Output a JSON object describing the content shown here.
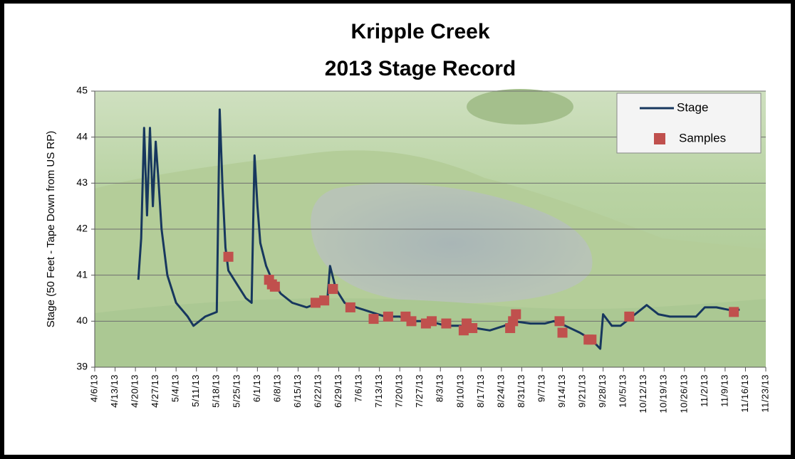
{
  "chart_data": {
    "type": "line",
    "title": "Kripple Creek",
    "subtitle": "2013 Stage Record",
    "y_label": "Stage (50 Feet - Tape Down from US RP)",
    "ylim": [
      39,
      45
    ],
    "yticks": [
      39,
      40,
      41,
      42,
      43,
      44,
      45
    ],
    "xlim": [
      "4/6/13",
      "11/23/13"
    ],
    "xticks": [
      "4/6/13",
      "4/13/13",
      "4/20/13",
      "4/27/13",
      "5/4/13",
      "5/11/13",
      "5/18/13",
      "5/25/13",
      "6/1/13",
      "6/8/13",
      "6/15/13",
      "6/22/13",
      "6/29/13",
      "7/6/13",
      "7/13/13",
      "7/20/13",
      "7/27/13",
      "8/3/13",
      "8/10/13",
      "8/17/13",
      "8/24/13",
      "8/31/13",
      "9/7/13",
      "9/14/13",
      "9/21/13",
      "9/28/13",
      "10/5/13",
      "10/12/13",
      "10/19/13",
      "10/26/13",
      "11/2/13",
      "11/9/13",
      "11/16/13",
      "11/23/13"
    ],
    "grid": true,
    "legend": "upper right",
    "series": [
      {
        "name": "Stage",
        "color": "#17375e",
        "kind": "line",
        "x": [
          "4/21/13",
          "4/22/13",
          "4/23/13",
          "4/24/13",
          "4/25/13",
          "4/26/13",
          "4/27/13",
          "4/28/13",
          "4/29/13",
          "5/1/13",
          "5/4/13",
          "5/8/13",
          "5/10/13",
          "5/14/13",
          "5/18/13",
          "5/19/13",
          "5/20/13",
          "5/21/13",
          "5/22/13",
          "5/25/13",
          "5/28/13",
          "5/30/13",
          "5/31/13",
          "6/1/13",
          "6/2/13",
          "6/4/13",
          "6/6/13",
          "6/9/13",
          "6/13/13",
          "6/18/13",
          "6/22/13",
          "6/25/13",
          "6/26/13",
          "6/28/13",
          "7/1/13",
          "7/5/13",
          "7/10/13",
          "7/15/13",
          "7/20/13",
          "7/25/13",
          "7/30/13",
          "8/5/13",
          "8/10/13",
          "8/15/13",
          "8/20/13",
          "8/25/13",
          "8/28/13",
          "9/3/13",
          "9/8/13",
          "9/11/13",
          "9/15/13",
          "9/20/13",
          "9/24/13",
          "9/27/13",
          "9/28/13",
          "10/1/13",
          "10/4/13",
          "10/6/13",
          "10/10/13",
          "10/13/13",
          "10/17/13",
          "10/21/13",
          "10/26/13",
          "10/30/13",
          "11/2/13",
          "11/6/13",
          "11/10/13",
          "11/14/13"
        ],
        "values": [
          40.9,
          41.8,
          44.2,
          42.3,
          44.2,
          42.5,
          43.9,
          43.0,
          42.0,
          41.0,
          40.4,
          40.1,
          39.9,
          40.1,
          40.2,
          44.6,
          42.9,
          41.6,
          41.1,
          40.8,
          40.5,
          40.4,
          43.6,
          42.5,
          41.7,
          41.2,
          40.9,
          40.6,
          40.4,
          40.3,
          40.4,
          40.4,
          41.2,
          40.7,
          40.4,
          40.3,
          40.2,
          40.1,
          40.1,
          40.0,
          40.0,
          39.9,
          39.9,
          39.85,
          39.8,
          39.9,
          40.0,
          39.95,
          39.95,
          40.0,
          39.9,
          39.75,
          39.6,
          39.4,
          40.15,
          39.9,
          39.9,
          40.0,
          40.2,
          40.35,
          40.15,
          40.1,
          40.1,
          40.1,
          40.3,
          40.3,
          40.25,
          40.25
        ]
      },
      {
        "name": "Samples",
        "color": "#c0504d",
        "kind": "marker",
        "x": [
          "5/22/13",
          "6/5/13",
          "6/6/13",
          "6/7/13",
          "6/21/13",
          "6/24/13",
          "6/27/13",
          "7/3/13",
          "7/11/13",
          "7/16/13",
          "7/22/13",
          "7/24/13",
          "7/29/13",
          "7/31/13",
          "8/5/13",
          "8/11/13",
          "8/12/13",
          "8/14/13",
          "8/27/13",
          "8/28/13",
          "8/29/13",
          "9/13/13",
          "9/14/13",
          "9/23/13",
          "9/24/13",
          "10/7/13",
          "11/12/13"
        ],
        "values": [
          41.4,
          40.9,
          40.8,
          40.75,
          40.4,
          40.45,
          40.7,
          40.3,
          40.05,
          40.1,
          40.1,
          40.0,
          39.95,
          40.0,
          39.95,
          39.8,
          39.95,
          39.85,
          39.85,
          40.0,
          40.15,
          40.0,
          39.75,
          39.6,
          39.6,
          40.1,
          40.2
        ]
      }
    ]
  }
}
